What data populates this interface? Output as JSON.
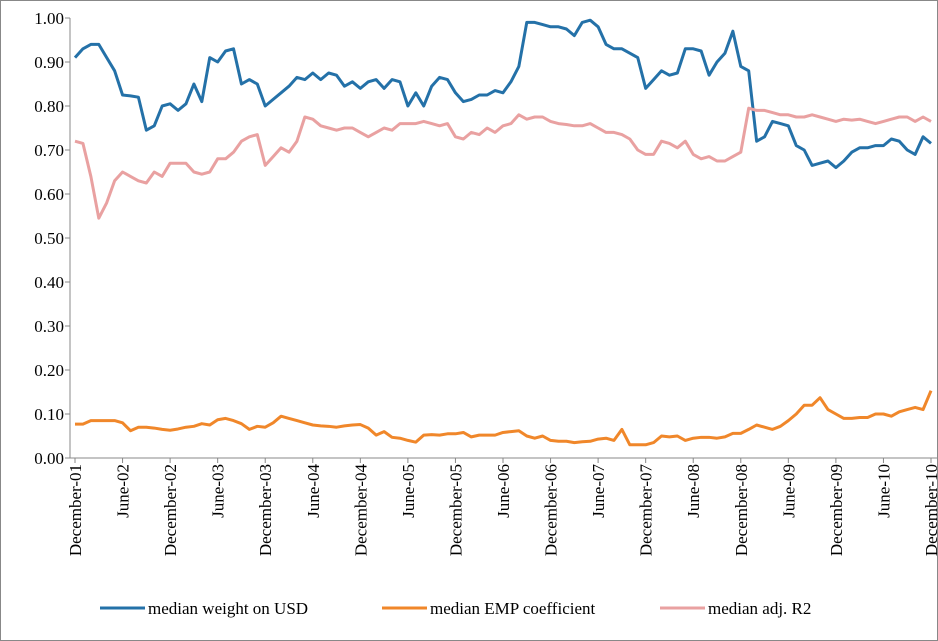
{
  "chart_data": {
    "type": "line",
    "categories": [
      "December-01",
      null,
      null,
      null,
      null,
      null,
      "June-02",
      null,
      null,
      null,
      null,
      null,
      "December-02",
      null,
      null,
      null,
      null,
      null,
      "June-03",
      null,
      null,
      null,
      null,
      null,
      "December-03",
      null,
      null,
      null,
      null,
      null,
      "June-04",
      null,
      null,
      null,
      null,
      null,
      "December-04",
      null,
      null,
      null,
      null,
      null,
      "June-05",
      null,
      null,
      null,
      null,
      null,
      "December-05",
      null,
      null,
      null,
      null,
      null,
      "June-06",
      null,
      null,
      null,
      null,
      null,
      "December-06",
      null,
      null,
      null,
      null,
      null,
      "June-07",
      null,
      null,
      null,
      null,
      null,
      "December-07",
      null,
      null,
      null,
      null,
      null,
      "June-08",
      null,
      null,
      null,
      null,
      null,
      "December-08",
      null,
      null,
      null,
      null,
      null,
      "June-09",
      null,
      null,
      null,
      null,
      null,
      "December-09",
      null,
      null,
      null,
      null,
      null,
      "June-10",
      null,
      null,
      null,
      null,
      null,
      "December-10"
    ],
    "series": [
      {
        "name": "median weight on USD",
        "color": "#2471a8",
        "values": [
          0.91,
          0.93,
          0.94,
          0.94,
          0.91,
          0.88,
          0.825,
          0.823,
          0.82,
          0.745,
          0.755,
          0.8,
          0.805,
          0.79,
          0.805,
          0.85,
          0.81,
          0.91,
          0.9,
          0.925,
          0.93,
          0.85,
          0.86,
          0.85,
          0.8,
          0.815,
          0.83,
          0.845,
          0.865,
          0.86,
          0.875,
          0.86,
          0.875,
          0.87,
          0.845,
          0.855,
          0.84,
          0.855,
          0.86,
          0.84,
          0.86,
          0.855,
          0.8,
          0.83,
          0.8,
          0.845,
          0.865,
          0.86,
          0.83,
          0.81,
          0.815,
          0.825,
          0.825,
          0.835,
          0.83,
          0.855,
          0.89,
          0.99,
          0.99,
          0.985,
          0.98,
          0.98,
          0.975,
          0.96,
          0.99,
          0.995,
          0.98,
          0.94,
          0.93,
          0.93,
          0.92,
          0.91,
          0.84,
          0.86,
          0.88,
          0.87,
          0.875,
          0.93,
          0.93,
          0.925,
          0.87,
          0.9,
          0.92,
          0.97,
          0.89,
          0.88,
          0.72,
          0.73,
          0.765,
          0.76,
          0.755,
          0.71,
          0.7,
          0.665,
          0.67,
          0.675,
          0.66,
          0.675,
          0.695,
          0.705,
          0.705,
          0.71,
          0.71,
          0.725,
          0.72,
          0.7,
          0.69,
          0.73,
          0.715
        ]
      },
      {
        "name": "median EMP coefficient",
        "color": "#f0872a",
        "values": [
          0.077,
          0.077,
          0.085,
          0.085,
          0.085,
          0.085,
          0.08,
          0.062,
          0.07,
          0.07,
          0.068,
          0.065,
          0.063,
          0.066,
          0.07,
          0.072,
          0.078,
          0.075,
          0.087,
          0.09,
          0.085,
          0.078,
          0.065,
          0.072,
          0.07,
          0.08,
          0.095,
          0.09,
          0.085,
          0.08,
          0.075,
          0.073,
          0.072,
          0.07,
          0.073,
          0.075,
          0.076,
          0.068,
          0.052,
          0.06,
          0.047,
          0.045,
          0.04,
          0.036,
          0.052,
          0.053,
          0.052,
          0.055,
          0.055,
          0.058,
          0.048,
          0.052,
          0.052,
          0.052,
          0.058,
          0.06,
          0.062,
          0.05,
          0.045,
          0.05,
          0.04,
          0.038,
          0.038,
          0.035,
          0.037,
          0.038,
          0.043,
          0.045,
          0.04,
          0.065,
          0.03,
          0.03,
          0.03,
          0.035,
          0.05,
          0.048,
          0.05,
          0.04,
          0.045,
          0.047,
          0.047,
          0.045,
          0.048,
          0.056,
          0.056,
          0.065,
          0.075,
          0.07,
          0.065,
          0.072,
          0.085,
          0.1,
          0.12,
          0.12,
          0.137,
          0.11,
          0.1,
          0.09,
          0.09,
          0.092,
          0.092,
          0.1,
          0.1,
          0.095,
          0.105,
          0.11,
          0.115,
          0.11,
          0.153
        ]
      },
      {
        "name": "median adj. R2",
        "color": "#e9a1a1",
        "values": [
          0.72,
          0.715,
          0.64,
          0.545,
          0.58,
          0.63,
          0.65,
          0.64,
          0.63,
          0.625,
          0.65,
          0.64,
          0.67,
          0.67,
          0.67,
          0.65,
          0.645,
          0.65,
          0.68,
          0.68,
          0.695,
          0.72,
          0.73,
          0.735,
          0.665,
          0.685,
          0.705,
          0.695,
          0.72,
          0.775,
          0.77,
          0.755,
          0.75,
          0.745,
          0.75,
          0.75,
          0.74,
          0.73,
          0.74,
          0.75,
          0.745,
          0.76,
          0.76,
          0.76,
          0.765,
          0.76,
          0.755,
          0.76,
          0.73,
          0.725,
          0.74,
          0.735,
          0.75,
          0.74,
          0.755,
          0.76,
          0.78,
          0.77,
          0.775,
          0.775,
          0.765,
          0.76,
          0.758,
          0.755,
          0.755,
          0.76,
          0.75,
          0.74,
          0.74,
          0.735,
          0.725,
          0.7,
          0.69,
          0.69,
          0.72,
          0.715,
          0.705,
          0.72,
          0.69,
          0.68,
          0.685,
          0.675,
          0.675,
          0.685,
          0.695,
          0.795,
          0.79,
          0.79,
          0.785,
          0.78,
          0.78,
          0.775,
          0.775,
          0.78,
          0.775,
          0.77,
          0.765,
          0.77,
          0.768,
          0.77,
          0.765,
          0.76,
          0.765,
          0.77,
          0.775,
          0.775,
          0.765,
          0.775,
          0.765
        ]
      }
    ],
    "ylim": [
      0,
      1
    ],
    "yticks": [
      {
        "value": 0,
        "label": "0.00"
      },
      {
        "value": 0.1,
        "label": "0.10"
      },
      {
        "value": 0.2,
        "label": "0.20"
      },
      {
        "value": 0.3,
        "label": "0.30"
      },
      {
        "value": 0.4,
        "label": "0.40"
      },
      {
        "value": 0.5,
        "label": "0.50"
      },
      {
        "value": 0.6,
        "label": "0.60"
      },
      {
        "value": 0.7,
        "label": "0.70"
      },
      {
        "value": 0.8,
        "label": "0.80"
      },
      {
        "value": 0.9,
        "label": "0.90"
      },
      {
        "value": 1,
        "label": "1.00"
      }
    ],
    "legend": "bottom"
  }
}
